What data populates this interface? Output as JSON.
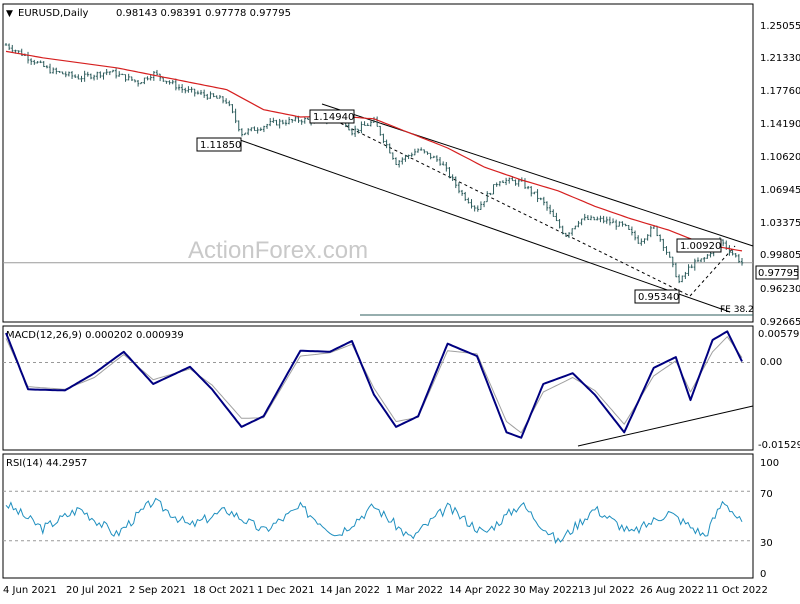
{
  "symbol_label": "EURUSD,Daily",
  "ohlc_label": "0.98143 0.98391 0.97778 0.97795",
  "watermark": "ActionForex.com",
  "current_price_label": "0.97795",
  "fe_label": "FE 38.2",
  "annotations": [
    "1.11850",
    "1.14940",
    "1.00920",
    "0.95340"
  ],
  "colors": {
    "candles": "#2e5d5d",
    "ma": "#d62020",
    "macd": "#000080",
    "macd_signal": "#a0a0a0",
    "rsi": "#1f8fbf",
    "trendline": "#000000"
  },
  "chart_data": [
    {
      "type": "candlestick",
      "title": "EURUSD,Daily",
      "price_ticks": [
        "1.25055",
        "1.21330",
        "1.17760",
        "1.14190",
        "1.10620",
        "1.06945",
        "1.03375",
        "0.99805",
        "0.96230",
        "0.92665"
      ],
      "x_ticks": [
        "4 Jun 2021",
        "20 Jul 2021",
        "2 Sep 2021",
        "18 Oct 2021",
        "1 Dec 2021",
        "14 Jan 2022",
        "1 Mar 2022",
        "14 Apr 2022",
        "30 May 2022",
        "13 Jul 2022",
        "26 Aug 2022",
        "11 Oct 2022"
      ],
      "ylim": [
        0.913,
        1.262
      ],
      "close_anchors": [
        {
          "x": 0,
          "y": 1.217
        },
        {
          "x": 0.02,
          "y": 1.208
        },
        {
          "x": 0.06,
          "y": 1.189
        },
        {
          "x": 0.1,
          "y": 1.181
        },
        {
          "x": 0.14,
          "y": 1.188
        },
        {
          "x": 0.18,
          "y": 1.176
        },
        {
          "x": 0.2,
          "y": 1.186
        },
        {
          "x": 0.24,
          "y": 1.168
        },
        {
          "x": 0.28,
          "y": 1.16
        },
        {
          "x": 0.3,
          "y": 1.155
        },
        {
          "x": 0.32,
          "y": 1.12
        },
        {
          "x": 0.36,
          "y": 1.131
        },
        {
          "x": 0.4,
          "y": 1.135
        },
        {
          "x": 0.43,
          "y": 1.134
        },
        {
          "x": 0.45,
          "y": 1.145
        },
        {
          "x": 0.47,
          "y": 1.122
        },
        {
          "x": 0.5,
          "y": 1.133
        },
        {
          "x": 0.53,
          "y": 1.088
        },
        {
          "x": 0.56,
          "y": 1.102
        },
        {
          "x": 0.59,
          "y": 1.089
        },
        {
          "x": 0.62,
          "y": 1.053
        },
        {
          "x": 0.64,
          "y": 1.037
        },
        {
          "x": 0.67,
          "y": 1.069
        },
        {
          "x": 0.7,
          "y": 1.066
        },
        {
          "x": 0.73,
          "y": 1.044
        },
        {
          "x": 0.76,
          "y": 1.008
        },
        {
          "x": 0.78,
          "y": 1.026
        },
        {
          "x": 0.81,
          "y": 1.025
        },
        {
          "x": 0.84,
          "y": 1.018
        },
        {
          "x": 0.86,
          "y": 1.001
        },
        {
          "x": 0.88,
          "y": 1.017
        },
        {
          "x": 0.895,
          "y": 0.995
        },
        {
          "x": 0.915,
          "y": 0.956
        },
        {
          "x": 0.93,
          "y": 0.975
        },
        {
          "x": 0.95,
          "y": 0.983
        },
        {
          "x": 0.97,
          "y": 1.003
        },
        {
          "x": 0.985,
          "y": 0.99
        },
        {
          "x": 1,
          "y": 0.978
        }
      ],
      "ma_anchors": [
        {
          "x": 0,
          "y": 1.21
        },
        {
          "x": 0.05,
          "y": 1.203
        },
        {
          "x": 0.15,
          "y": 1.192
        },
        {
          "x": 0.25,
          "y": 1.176
        },
        {
          "x": 0.3,
          "y": 1.168
        },
        {
          "x": 0.35,
          "y": 1.146
        },
        {
          "x": 0.4,
          "y": 1.138
        },
        {
          "x": 0.45,
          "y": 1.139
        },
        {
          "x": 0.5,
          "y": 1.136
        },
        {
          "x": 0.55,
          "y": 1.12
        },
        {
          "x": 0.6,
          "y": 1.104
        },
        {
          "x": 0.65,
          "y": 1.083
        },
        {
          "x": 0.7,
          "y": 1.069
        },
        {
          "x": 0.75,
          "y": 1.057
        },
        {
          "x": 0.8,
          "y": 1.04
        },
        {
          "x": 0.85,
          "y": 1.026
        },
        {
          "x": 0.9,
          "y": 1.014
        },
        {
          "x": 0.95,
          "y": 0.998
        },
        {
          "x": 1,
          "y": 0.991
        }
      ]
    },
    {
      "type": "line",
      "title": "MACD(12,26,9) 0.000202 0.000939",
      "y_ticks": [
        "0.005798",
        "0.00",
        "-0.015296"
      ],
      "ylim": [
        -0.0163,
        0.0068
      ],
      "values_anchor_x": [
        0,
        0.03,
        0.08,
        0.12,
        0.16,
        0.2,
        0.25,
        0.28,
        0.32,
        0.35,
        0.4,
        0.44,
        0.47,
        0.5,
        0.53,
        0.56,
        0.6,
        0.64,
        0.68,
        0.7,
        0.73,
        0.77,
        0.8,
        0.84,
        0.88,
        0.91,
        0.93,
        0.96,
        0.98,
        1
      ],
      "macd": [
        0.0055,
        -0.005,
        -0.0052,
        -0.002,
        0.002,
        -0.004,
        -0.0008,
        -0.005,
        -0.012,
        -0.01,
        0.0022,
        0.002,
        0.004,
        -0.006,
        -0.012,
        -0.01,
        0.0035,
        0.0012,
        -0.013,
        -0.014,
        -0.004,
        -0.002,
        -0.006,
        -0.013,
        -0.001,
        0.001,
        -0.007,
        0.0042,
        0.0058,
        0.0002
      ],
      "signal": [
        0.0045,
        -0.0045,
        -0.005,
        -0.0028,
        0.0015,
        -0.0032,
        -0.0012,
        -0.0042,
        -0.0104,
        -0.0103,
        0.0012,
        0.0018,
        0.0034,
        -0.0048,
        -0.011,
        -0.0102,
        0.0022,
        0.0016,
        -0.011,
        -0.0131,
        -0.0055,
        -0.0028,
        -0.0052,
        -0.0115,
        -0.0025,
        0.0003,
        -0.0055,
        0.002,
        0.0048,
        0.0009
      ]
    },
    {
      "type": "line",
      "title": "RSI(14) 44.2957",
      "y_ticks": [
        "100",
        "70",
        "30",
        "0"
      ],
      "ylim": [
        0,
        100
      ],
      "values_anchor_x": [
        0,
        0.05,
        0.1,
        0.15,
        0.2,
        0.25,
        0.3,
        0.35,
        0.4,
        0.45,
        0.5,
        0.55,
        0.6,
        0.65,
        0.7,
        0.75,
        0.8,
        0.85,
        0.9,
        0.95,
        0.975,
        1
      ],
      "rsi": [
        60,
        40,
        56,
        35,
        62,
        42,
        55,
        38,
        57,
        35,
        58,
        32,
        57,
        36,
        60,
        29,
        56,
        36,
        53,
        34,
        63,
        44
      ]
    }
  ]
}
